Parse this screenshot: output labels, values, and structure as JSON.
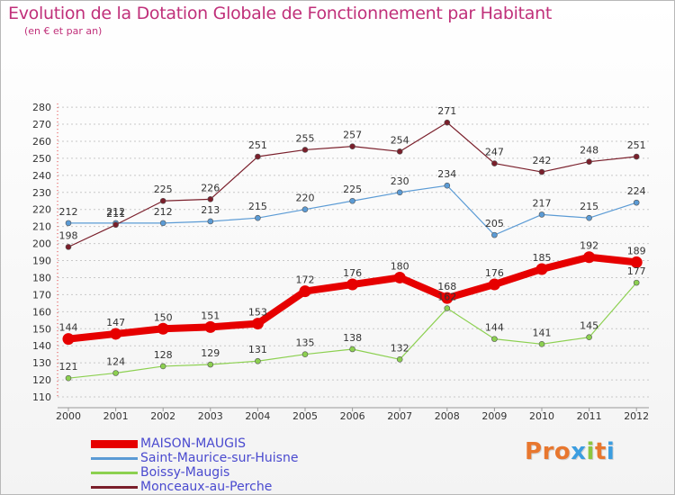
{
  "title": "Evolution de la Dotation Globale de Fonctionnement par Habitant",
  "subtitle": "(en € et par an)",
  "logo_text": "Proxiti",
  "logo_colors": [
    "#e8772e",
    "#e8772e",
    "#e8772e",
    "#3b9de0",
    "#8cc63f",
    "#e8772e",
    "#3b9de0"
  ],
  "chart_data": {
    "type": "line",
    "x": [
      "2000",
      "2001",
      "2002",
      "2003",
      "2004",
      "2005",
      "2006",
      "2007",
      "2008",
      "2009",
      "2010",
      "2011",
      "2012"
    ],
    "yticks": [
      "110",
      "120",
      "130",
      "140",
      "150",
      "160",
      "170",
      "180",
      "190",
      "200",
      "210",
      "220",
      "230",
      "240",
      "250",
      "260",
      "270",
      "280"
    ],
    "ylim": [
      110,
      280
    ],
    "grid": "horizontal dashed",
    "legend_position": "bottom",
    "series": [
      {
        "name": "MAISON-MAUGIS",
        "color": "#e60000",
        "values": [
          144,
          147,
          150,
          151,
          153,
          172,
          176,
          180,
          168,
          176,
          185,
          192,
          189
        ]
      },
      {
        "name": "Saint-Maurice-sur-Huisne",
        "color": "#5b9bd5",
        "values": [
          212,
          212,
          212,
          213,
          215,
          220,
          225,
          230,
          234,
          205,
          217,
          215,
          224
        ]
      },
      {
        "name": "Boissy-Maugis",
        "color": "#8cd050",
        "values": [
          121,
          124,
          128,
          129,
          131,
          135,
          138,
          132,
          162,
          144,
          141,
          145,
          177
        ]
      },
      {
        "name": "Monceaux-au-Perche",
        "color": "#7a1f2b",
        "values": [
          198,
          211,
          225,
          226,
          251,
          255,
          257,
          254,
          271,
          247,
          242,
          248,
          251
        ]
      }
    ]
  }
}
